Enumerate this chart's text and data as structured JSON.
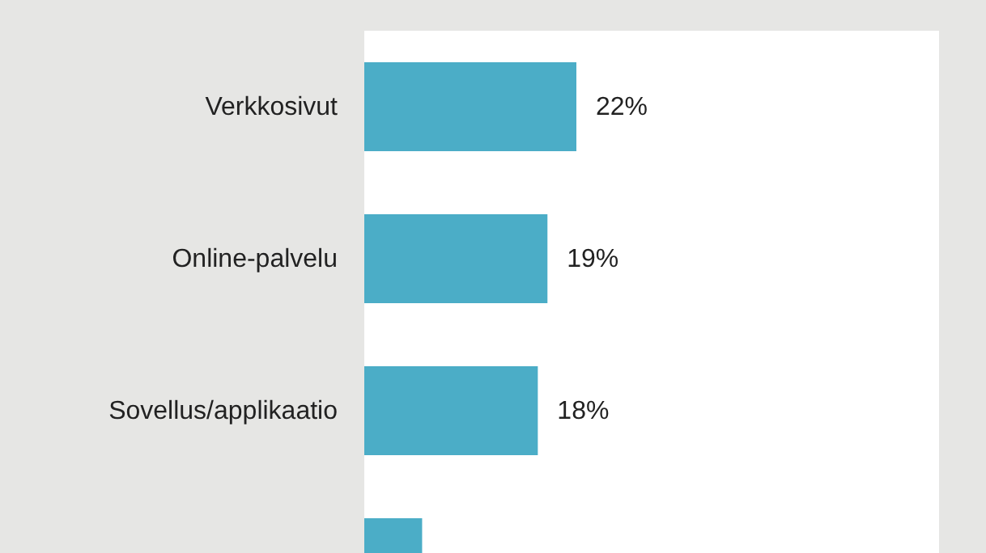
{
  "chart_data": {
    "type": "bar",
    "orientation": "horizontal",
    "categories": [
      "Verkkosivut",
      "Online-palvelu",
      "Sovellus/applikaatio",
      null
    ],
    "values": [
      22,
      19,
      18,
      6
    ],
    "value_labels": [
      "22%",
      "19%",
      "18%",
      null
    ],
    "color": "#4badc7"
  }
}
